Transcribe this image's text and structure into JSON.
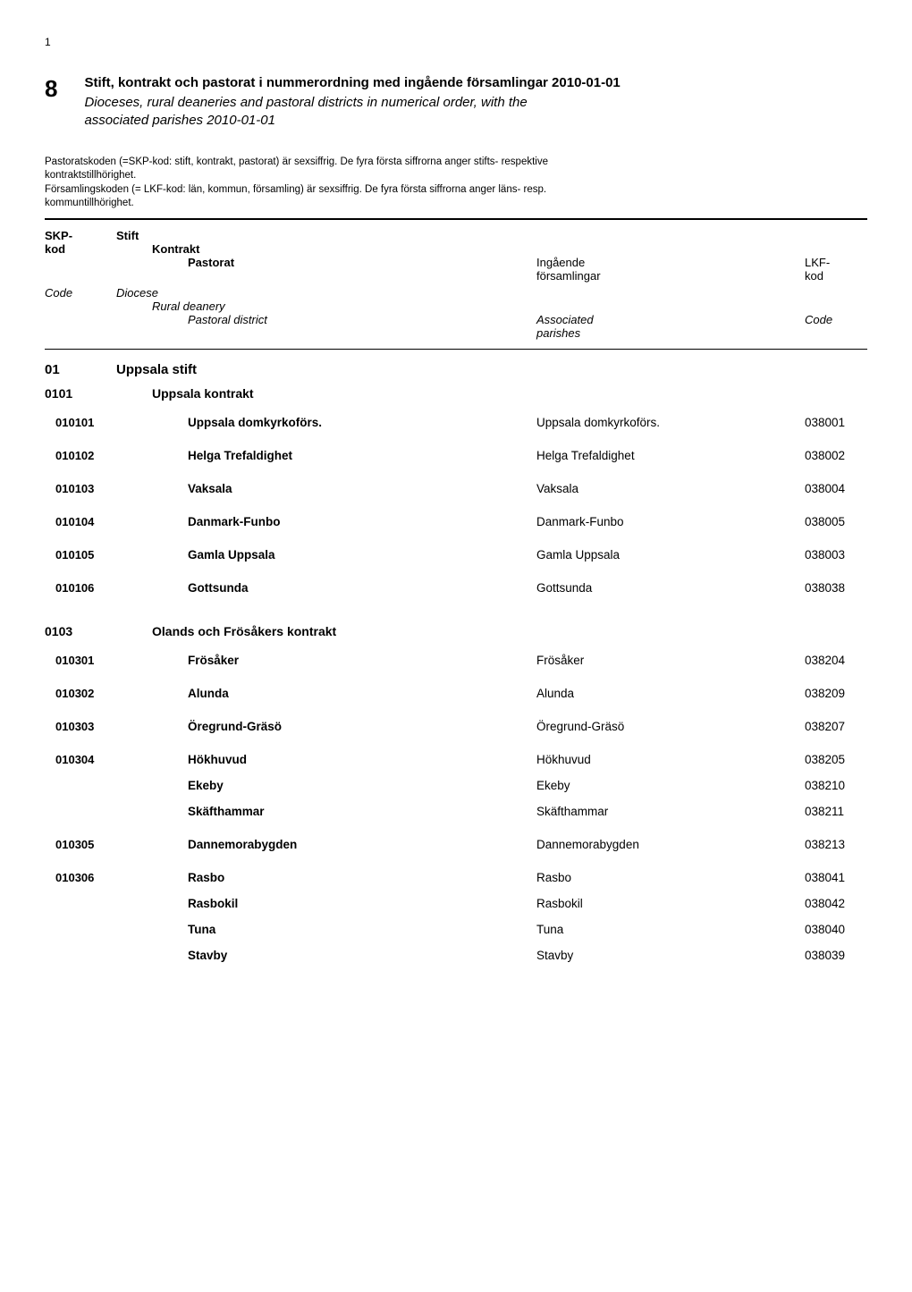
{
  "page_number": "1",
  "chapter_number": "8",
  "title_sv": "Stift, kontrakt och pastorat i nummerordning med ingående församlingar 2010-01-01",
  "title_en_line1": "Dioceses, rural deaneries and pastoral districts in numerical order, with the",
  "title_en_line2": "associated parishes 2010-01-01",
  "note_line1": "Pastoratskoden (=SKP-kod: stift, kontrakt, pastorat) är sexsiffrig. De fyra första siffrorna anger stifts- respektive",
  "note_line2": "kontraktstillhörighet.",
  "note_line3": "Församlingskoden (= LKF-kod: län, kommun, församling) är sexsiffrig. De fyra första siffrorna anger läns- resp.",
  "note_line4": "kommuntillhörighet.",
  "header": {
    "skp": "SKP-",
    "kod": "kod",
    "stift": "Stift",
    "kontrakt": "Kontrakt",
    "pastorat": "Pastorat",
    "ingaende": "Ingående",
    "forsamlingar": "församlingar",
    "lkf": "LKF-",
    "lkf_kod": "kod",
    "code": "Code",
    "diocese": "Diocese",
    "rural_deanery": "Rural deanery",
    "pastoral_district": "Pastoral district",
    "associated": "Associated",
    "parishes": "parishes",
    "code2": "Code"
  },
  "sections": [
    {
      "code": "01",
      "title": "Uppsala stift",
      "subsections": [
        {
          "code": "0101",
          "title": "Uppsala kontrakt",
          "groups": [
            {
              "code": "010101",
              "rows": [
                {
                  "pastorat": "Uppsala domkyrkoförs.",
                  "forsamling": "Uppsala domkyrkoförs.",
                  "lkf": "038001"
                }
              ]
            },
            {
              "code": "010102",
              "rows": [
                {
                  "pastorat": "Helga Trefaldighet",
                  "forsamling": "Helga Trefaldighet",
                  "lkf": "038002"
                }
              ]
            },
            {
              "code": "010103",
              "rows": [
                {
                  "pastorat": "Vaksala",
                  "forsamling": "Vaksala",
                  "lkf": "038004"
                }
              ]
            },
            {
              "code": "010104",
              "rows": [
                {
                  "pastorat": "Danmark-Funbo",
                  "forsamling": "Danmark-Funbo",
                  "lkf": "038005"
                }
              ]
            },
            {
              "code": "010105",
              "rows": [
                {
                  "pastorat": "Gamla Uppsala",
                  "forsamling": "Gamla Uppsala",
                  "lkf": "038003"
                }
              ]
            },
            {
              "code": "010106",
              "rows": [
                {
                  "pastorat": "Gottsunda",
                  "forsamling": "Gottsunda",
                  "lkf": "038038"
                }
              ]
            }
          ]
        },
        {
          "code": "0103",
          "title": "Olands och Frösåkers kontrakt",
          "groups": [
            {
              "code": "010301",
              "rows": [
                {
                  "pastorat": "Frösåker",
                  "forsamling": "Frösåker",
                  "lkf": "038204"
                }
              ]
            },
            {
              "code": "010302",
              "rows": [
                {
                  "pastorat": "Alunda",
                  "forsamling": "Alunda",
                  "lkf": "038209"
                }
              ]
            },
            {
              "code": "010303",
              "rows": [
                {
                  "pastorat": "Öregrund-Gräsö",
                  "forsamling": "Öregrund-Gräsö",
                  "lkf": "038207"
                }
              ]
            },
            {
              "code": "010304",
              "rows": [
                {
                  "pastorat": "Hökhuvud",
                  "forsamling": "Hökhuvud",
                  "lkf": "038205"
                },
                {
                  "pastorat": "Ekeby",
                  "forsamling": "Ekeby",
                  "lkf": "038210"
                },
                {
                  "pastorat": "Skäfthammar",
                  "forsamling": "Skäfthammar",
                  "lkf": "038211"
                }
              ]
            },
            {
              "code": "010305",
              "rows": [
                {
                  "pastorat": "Dannemorabygden",
                  "forsamling": "Dannemorabygden",
                  "lkf": "038213"
                }
              ]
            },
            {
              "code": "010306",
              "rows": [
                {
                  "pastorat": "Rasbo",
                  "forsamling": "Rasbo",
                  "lkf": "038041"
                },
                {
                  "pastorat": "Rasbokil",
                  "forsamling": "Rasbokil",
                  "lkf": "038042"
                },
                {
                  "pastorat": "Tuna",
                  "forsamling": "Tuna",
                  "lkf": "038040"
                },
                {
                  "pastorat": "Stavby",
                  "forsamling": "Stavby",
                  "lkf": "038039"
                }
              ]
            }
          ]
        }
      ]
    }
  ]
}
